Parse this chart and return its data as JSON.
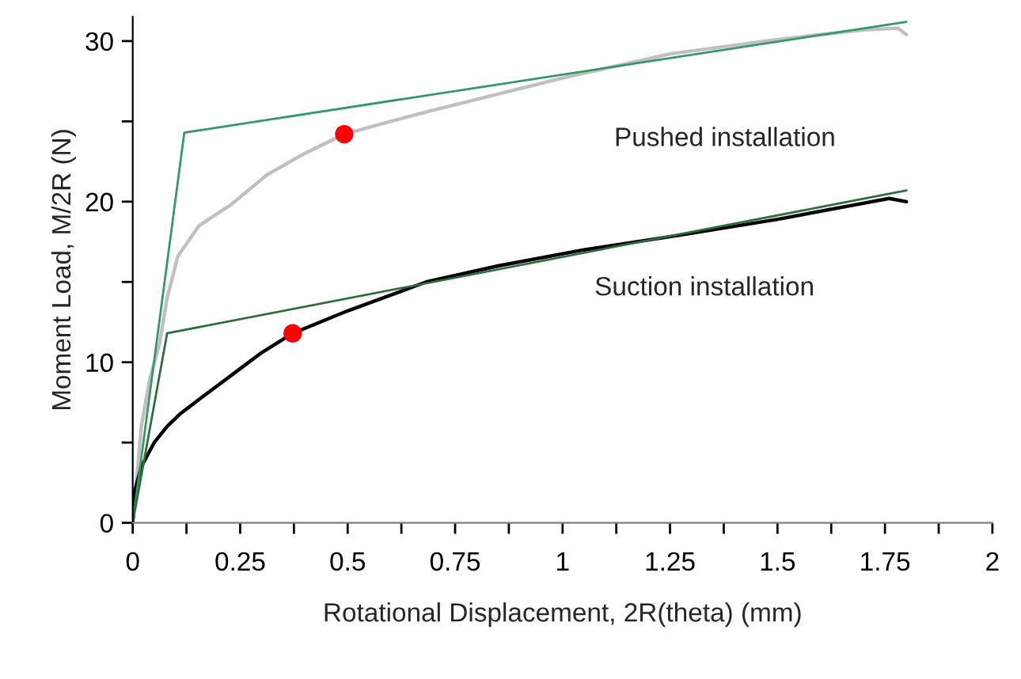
{
  "chart_data": {
    "type": "line",
    "xlabel": "Rotational Displacement, 2R(theta) (mm)",
    "ylabel": "Moment Load, M/2R (N)",
    "xlim": [
      0,
      2
    ],
    "ylim": [
      0,
      31.5
    ],
    "xticks": [
      0,
      {
        "value": 0.125,
        "label": null
      },
      0.25,
      {
        "value": 0.375,
        "label": null
      },
      0.5,
      {
        "value": 0.625,
        "label": null
      },
      0.75,
      {
        "value": 0.875,
        "label": null
      },
      1,
      {
        "value": 1.125,
        "label": null
      },
      1.25,
      {
        "value": 1.375,
        "label": null
      },
      1.5,
      {
        "value": 1.625,
        "label": null
      },
      1.75,
      {
        "value": 1.875,
        "label": null
      },
      2
    ],
    "yticks": [
      0,
      {
        "value": 5,
        "label": null
      },
      10,
      {
        "value": 15,
        "label": null
      },
      20,
      {
        "value": 25,
        "label": null
      },
      30
    ],
    "grid": false,
    "legend": false,
    "series": [
      {
        "color": "#c0c0c0",
        "x": [
          0,
          0.02,
          0.04,
          0.062,
          0.08,
          0.105,
          0.154,
          0.228,
          0.314,
          0.4,
          0.492,
          0.6,
          0.7,
          0.85,
          1.0,
          1.25,
          1.5,
          1.7,
          1.78,
          1.8
        ],
        "values": [
          0,
          6,
          9,
          11.1,
          14,
          16.6,
          18.5,
          19.8,
          21.7,
          23,
          24.2,
          25,
          25.7,
          26.7,
          27.7,
          29.2,
          30.1,
          30.7,
          30.8,
          30.4
        ]
      },
      {
        "color": "#000000",
        "x": [
          0,
          0.005,
          0.02,
          0.05,
          0.08,
          0.111,
          0.15,
          0.19,
          0.25,
          0.3,
          0.372,
          0.5,
          0.683,
          0.85,
          1.05,
          1.27,
          1.5,
          1.76,
          1.8
        ],
        "values": [
          0,
          2,
          3.5,
          5,
          6,
          6.8,
          7.6,
          8.4,
          9.6,
          10.6,
          11.8,
          13.2,
          15.0,
          16.0,
          17.0,
          17.9,
          18.9,
          20.2,
          20.0
        ]
      },
      {
        "color": "#339966",
        "x": [
          0,
          0.12,
          1.8
        ],
        "values": [
          0,
          24.3,
          31.2
        ]
      },
      {
        "color": "#2d6e3e",
        "x": [
          0,
          0.08,
          1.8
        ],
        "values": [
          0,
          11.8,
          20.7
        ]
      },
      {
        "type": "scatter",
        "color": "#ff0000",
        "marker": "circle",
        "x": [
          0.492,
          0.372
        ],
        "values": [
          24.2,
          11.8
        ]
      }
    ],
    "annotations": [
      "Pushed installation",
      "Suction installation"
    ]
  }
}
